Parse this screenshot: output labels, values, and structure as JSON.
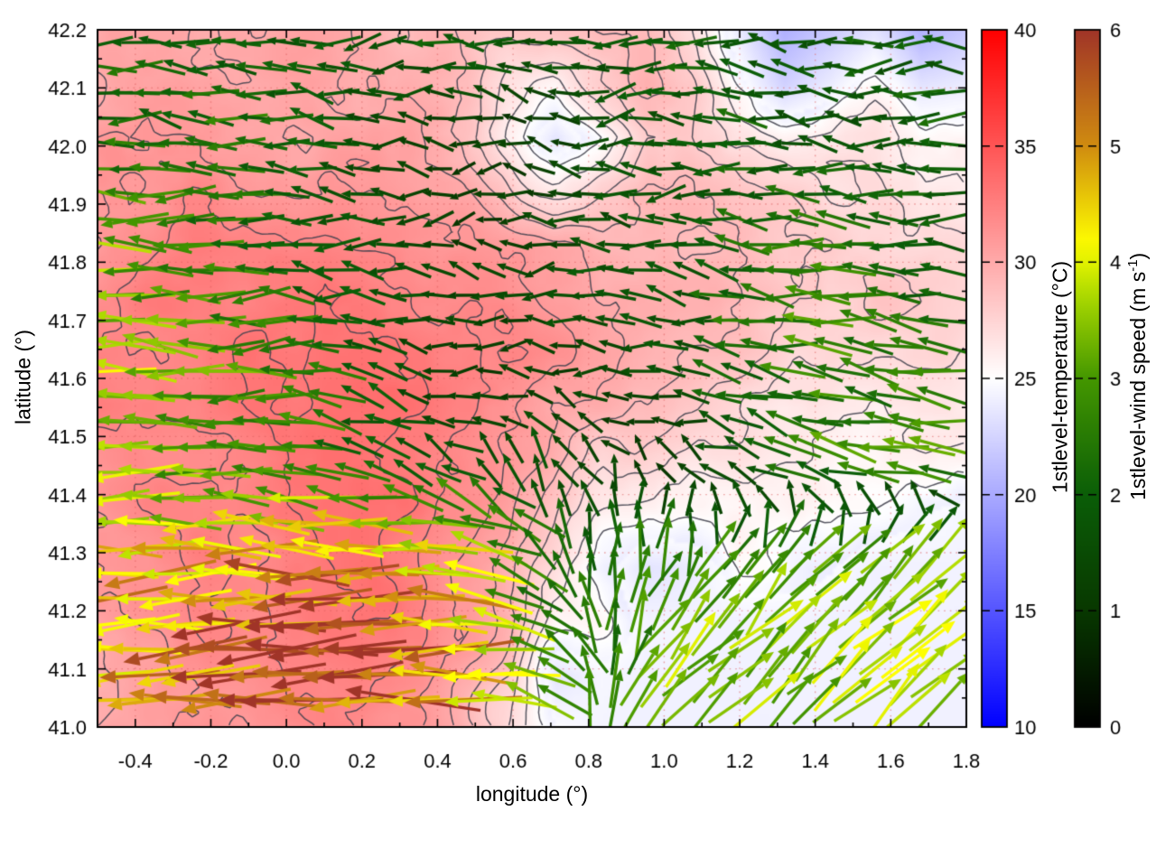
{
  "figure": {
    "background": "#ffffff"
  },
  "axes": {
    "xlabel": "longitude (°)",
    "ylabel": "latitude (°)",
    "xlim": [
      -0.5,
      1.8
    ],
    "ylim": [
      41.0,
      42.2
    ],
    "xticks": [
      -0.4,
      -0.2,
      0.0,
      0.2,
      0.4,
      0.6,
      0.8,
      1.0,
      1.2,
      1.4,
      1.6,
      1.8
    ],
    "yticks": [
      41.0,
      41.1,
      41.2,
      41.3,
      41.4,
      41.5,
      41.6,
      41.7,
      41.8,
      41.9,
      42.0,
      42.1,
      42.2
    ],
    "x_minor_step": 0.1,
    "y_minor_step": 0.05,
    "grid_color": "#dd5c5c",
    "tick_color": "#000000"
  },
  "colorbars": {
    "temperature": {
      "label": "1stlevel-temperature (°C)",
      "min": 10,
      "max": 40,
      "ticks": [
        10,
        15,
        20,
        25,
        30,
        35,
        40
      ],
      "stops": [
        [
          10,
          "#0000ff"
        ],
        [
          25,
          "#ffffff"
        ],
        [
          40,
          "#ff0000"
        ]
      ]
    },
    "wind": {
      "label_prefix": "1stlevel-wind speed (m s",
      "label_sup": "-1",
      "label_suffix": ")",
      "min": 0,
      "max": 6,
      "ticks": [
        0,
        1,
        2,
        3,
        4,
        5,
        6
      ],
      "stops": [
        [
          0,
          "#000000"
        ],
        [
          1,
          "#083800"
        ],
        [
          2,
          "#0b5e08"
        ],
        [
          3,
          "#449700"
        ],
        [
          3.7,
          "#a8d800"
        ],
        [
          4.15,
          "#ffff00"
        ],
        [
          5,
          "#d08c10"
        ],
        [
          6,
          "#a03428"
        ]
      ]
    }
  },
  "chart_data": {
    "type": "heatmap+contour+quiver",
    "contour_levels": [
      25,
      26,
      27,
      28,
      29,
      30,
      31,
      32,
      33,
      34
    ],
    "contour_color": "#41414d",
    "noise_seed": 7,
    "arrow_spacing_px": 28,
    "temperature_grid": {
      "lon_start": -0.5,
      "lon_end": 1.8,
      "lat_start": 42.2,
      "lat_end": 41.0,
      "ncols": 20,
      "nrows": 14,
      "values": [
        [
          31,
          31.5,
          31,
          31,
          31,
          31,
          30.5,
          30,
          29.5,
          29,
          29.5,
          30,
          30,
          28,
          24,
          20.5,
          22,
          23.5,
          20.5,
          22
        ],
        [
          31,
          31.5,
          31.5,
          31,
          31,
          31,
          31,
          30.5,
          29.5,
          27.5,
          26.5,
          28.5,
          30,
          29,
          25.5,
          22.5,
          24,
          26,
          23.5,
          24
        ],
        [
          31.5,
          32,
          32,
          31.5,
          31,
          31,
          31,
          31,
          29.5,
          26.5,
          23.5,
          26,
          28.5,
          28.5,
          27,
          26.5,
          27,
          27.5,
          26,
          26
        ],
        [
          32,
          32,
          32.5,
          32,
          32,
          32,
          31.5,
          31,
          30.5,
          28.5,
          27,
          28.5,
          29.5,
          29.5,
          29,
          28.5,
          28,
          28,
          27,
          27
        ],
        [
          32,
          32.5,
          33,
          33,
          33,
          33,
          32.5,
          32,
          32,
          31.5,
          31,
          30,
          30,
          30,
          29.5,
          29,
          29,
          28.5,
          28,
          28
        ],
        [
          32.5,
          33,
          33,
          33,
          33.5,
          34,
          33.5,
          33,
          33,
          32.5,
          32,
          31,
          30.5,
          30,
          30,
          29.5,
          29,
          29,
          28.5,
          28
        ],
        [
          33,
          33,
          33,
          33.5,
          34,
          34.2,
          34,
          33.5,
          33,
          33,
          32,
          31,
          30.5,
          30,
          29.5,
          28.5,
          28,
          28,
          28,
          27.5
        ],
        [
          33,
          33,
          33,
          33.5,
          34,
          34.2,
          34,
          33.5,
          33,
          32,
          31,
          30,
          29.5,
          29,
          28,
          27,
          27,
          26.5,
          27,
          27
        ],
        [
          32.5,
          33,
          33,
          33,
          33.5,
          34,
          34,
          33.5,
          33,
          32,
          30,
          28.5,
          28,
          27,
          27,
          26.5,
          26.5,
          26,
          26,
          26
        ],
        [
          32,
          32.5,
          33,
          33,
          33.5,
          34,
          34,
          33.5,
          32.5,
          31,
          29,
          27,
          26,
          26,
          26.5,
          26,
          26,
          25.5,
          25,
          24.5
        ],
        [
          32,
          32,
          32.5,
          33,
          33,
          33.5,
          34,
          33,
          32,
          30,
          28,
          25.5,
          23.5,
          24,
          25.5,
          25.5,
          25,
          24.3,
          24.3,
          24.3
        ],
        [
          31.5,
          32,
          32.5,
          33,
          33,
          33.5,
          33.5,
          33,
          32,
          30,
          26.5,
          26,
          24.5,
          24.4,
          24.3,
          24.3,
          24.3,
          24.3,
          24.3,
          24.3
        ],
        [
          31,
          31.5,
          32,
          32.5,
          33,
          33,
          33,
          32.5,
          31,
          29,
          23.5,
          24.6,
          24.3,
          24.3,
          24.3,
          24.3,
          24.3,
          24.3,
          24.3,
          24.3
        ],
        [
          31,
          31.5,
          32,
          32,
          32.5,
          33,
          32.5,
          32,
          30,
          27.5,
          25,
          24.4,
          24.3,
          24.3,
          24.3,
          24.3,
          24.3,
          24.3,
          24.3,
          24.3
        ]
      ]
    },
    "wind_grid": {
      "lon_start": -0.5,
      "lon_end": 1.8,
      "lat_start": 42.2,
      "lat_end": 41.0,
      "ncols": 13,
      "nrows": 9,
      "u": [
        [
          -2.0,
          -2.2,
          -1.8,
          -2.0,
          -1.6,
          -2.2,
          -1.8,
          -2.0,
          -2.2,
          -1.6,
          -1.8,
          -2.0,
          -1.8
        ],
        [
          -2.2,
          -2.0,
          -2.4,
          -1.8,
          -1.5,
          -1.2,
          -1.0,
          -1.4,
          -1.8,
          -2.0,
          -1.6,
          -1.8,
          -2.0
        ],
        [
          -3.2,
          -2.6,
          -2.2,
          -2.0,
          -1.4,
          -1.0,
          -1.2,
          -1.5,
          -1.8,
          -2.0,
          -2.2,
          -1.8,
          -2.0
        ],
        [
          -3.5,
          -3.0,
          -2.5,
          -2.0,
          -1.6,
          -1.3,
          -1.5,
          -1.8,
          -1.6,
          -2.4,
          -2.8,
          -2.2,
          -2.0
        ],
        [
          -4.0,
          -3.4,
          -3.0,
          -2.6,
          -1.6,
          -1.2,
          -1.0,
          -1.3,
          -1.6,
          -2.2,
          -2.6,
          -2.4,
          -2.6
        ],
        [
          -3.6,
          -3.2,
          -2.8,
          -2.4,
          -2.0,
          -1.4,
          -1.0,
          -0.6,
          -0.8,
          -1.8,
          -2.6,
          -2.8,
          -3.0
        ],
        [
          -4.4,
          -4.2,
          -4.6,
          -5.0,
          -4.8,
          -4.2,
          -2.0,
          0.3,
          0.8,
          1.6,
          2.5,
          2.5,
          2.5
        ],
        [
          -4.8,
          -5.0,
          -5.4,
          -5.8,
          -5.6,
          -5.2,
          -3.0,
          -0.5,
          2.4,
          2.5,
          2.5,
          2.6,
          2.5
        ],
        [
          -4.4,
          -4.8,
          -5.2,
          -5.6,
          -5.4,
          -5.0,
          -3.4,
          0.3,
          2.5,
          2.5,
          2.6,
          2.5,
          2.5
        ]
      ],
      "v": [
        [
          0.2,
          -0.2,
          0.3,
          0.0,
          -0.3,
          0.2,
          0.4,
          -0.2,
          0.0,
          0.3,
          -0.2,
          0.2,
          0.0
        ],
        [
          -0.2,
          0.3,
          0.0,
          0.3,
          -0.3,
          0.4,
          0.3,
          -0.3,
          0.2,
          0.0,
          0.3,
          -0.2,
          0.2
        ],
        [
          0.3,
          -0.2,
          0.3,
          0.0,
          0.4,
          -0.4,
          0.3,
          0.2,
          -0.3,
          0.3,
          0.0,
          0.2,
          -0.2
        ],
        [
          0.2,
          0.3,
          -0.2,
          0.3,
          0.0,
          0.3,
          -0.3,
          0.2,
          0.3,
          0.5,
          0.0,
          0.4,
          0.3
        ],
        [
          0.0,
          0.3,
          -0.2,
          0.2,
          0.4,
          -0.3,
          0.3,
          0.2,
          -0.2,
          0.6,
          0.4,
          0.5,
          0.4
        ],
        [
          0.2,
          0.0,
          0.3,
          0.6,
          0.8,
          1.2,
          1.5,
          1.2,
          0.8,
          0.8,
          0.8,
          0.5,
          0.4
        ],
        [
          0.0,
          -0.2,
          0.2,
          0.3,
          0.4,
          0.8,
          1.5,
          2.4,
          2.5,
          2.4,
          2.4,
          2.5,
          2.4
        ],
        [
          -0.3,
          -0.2,
          -0.3,
          -0.2,
          -0.4,
          0.0,
          0.8,
          2.6,
          2.4,
          2.5,
          2.5,
          2.4,
          2.5
        ],
        [
          0.3,
          0.2,
          0.0,
          0.3,
          -0.3,
          0.3,
          0.6,
          3.0,
          2.4,
          2.5,
          2.4,
          2.5,
          2.4
        ]
      ]
    }
  }
}
